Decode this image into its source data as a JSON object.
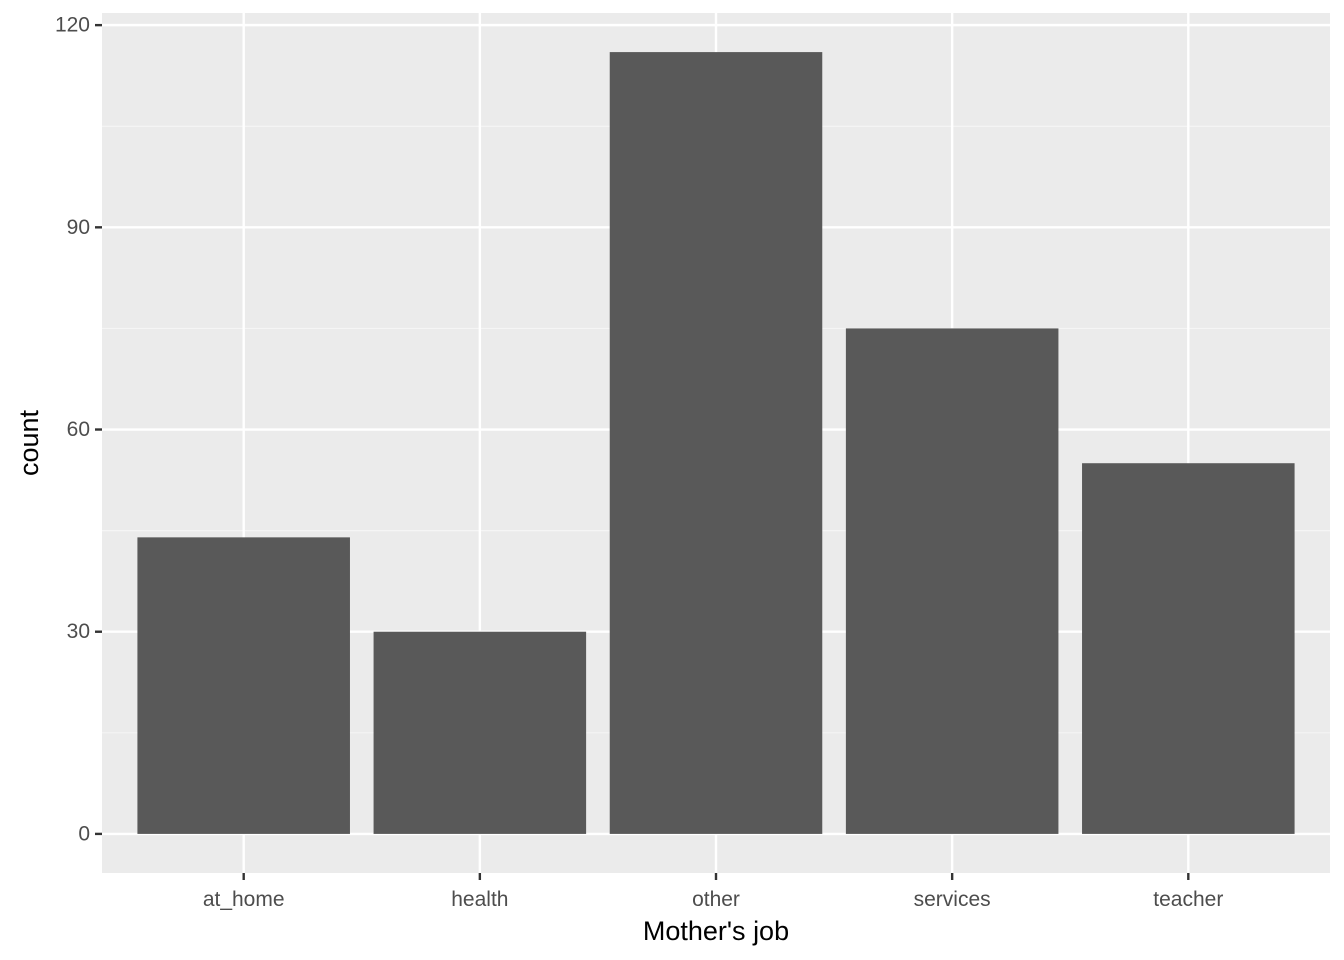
{
  "colors": {
    "panel_background": "#EBEBEB",
    "grid_major": "#FFFFFF",
    "grid_minor": "#F5F5F5",
    "bar_fill": "#595959",
    "tick_mark": "#333333",
    "tick_label": "#4D4D4D",
    "axis_title": "#000000"
  },
  "chart_data": {
    "type": "bar",
    "title": "",
    "xlabel": "Mother's job",
    "ylabel": "count",
    "categories": [
      "at_home",
      "health",
      "other",
      "services",
      "teacher"
    ],
    "values": [
      44,
      30,
      116,
      75,
      55
    ],
    "ylim": [
      -5.8,
      121.8
    ],
    "yticks": [
      0,
      30,
      60,
      90,
      120
    ],
    "ytick_labels": [
      "0",
      "30",
      "60",
      "90",
      "120"
    ],
    "grid": true,
    "legend": "none"
  }
}
